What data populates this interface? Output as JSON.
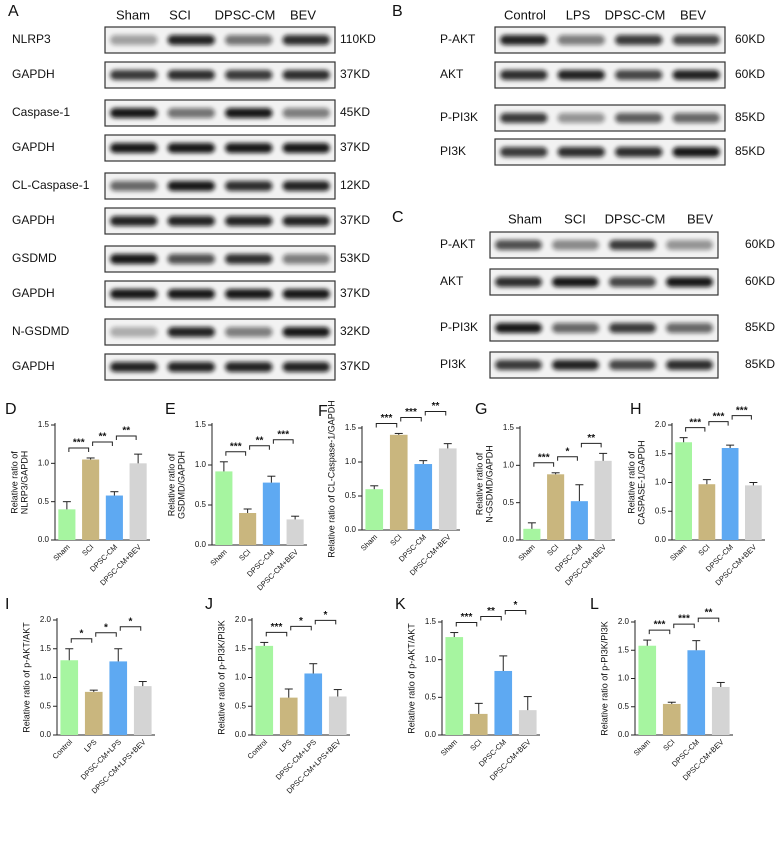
{
  "blots": [
    {
      "label": "A",
      "lanes": [
        "Sham",
        "SCI",
        "DPSC-CM",
        "BEV"
      ],
      "rows": [
        {
          "protein": "NLRP3",
          "size": "110KD"
        },
        {
          "protein": "GAPDH",
          "size": "37KD"
        },
        {
          "protein": "Caspase-1",
          "size": "45KD"
        },
        {
          "protein": "GAPDH",
          "size": "37KD"
        },
        {
          "protein": "CL-Caspase-1",
          "size": "12KD"
        },
        {
          "protein": "GAPDH",
          "size": "37KD"
        },
        {
          "protein": "GSDMD",
          "size": "53KD"
        },
        {
          "protein": "GAPDH",
          "size": "37KD"
        },
        {
          "protein": "N-GSDMD",
          "size": "32KD"
        },
        {
          "protein": "GAPDH",
          "size": "37KD"
        }
      ]
    },
    {
      "label": "B",
      "lanes": [
        "Control",
        "LPS",
        "DPSC-CM",
        "BEV"
      ],
      "rows": [
        {
          "protein": "P-AKT",
          "size": "60KD"
        },
        {
          "protein": "AKT",
          "size": "60KD"
        },
        {
          "protein": "P-PI3K",
          "size": "85KD"
        },
        {
          "protein": "PI3K",
          "size": "85KD"
        }
      ]
    },
    {
      "label": "C",
      "lanes": [
        "Sham",
        "SCI",
        "DPSC-CM",
        "BEV"
      ],
      "rows": [
        {
          "protein": "P-AKT",
          "size": "60KD"
        },
        {
          "protein": "AKT",
          "size": "60KD"
        },
        {
          "protein": "P-PI3K",
          "size": "85KD"
        },
        {
          "protein": "PI3K",
          "size": "85KD"
        }
      ]
    }
  ],
  "chart_data": [
    {
      "type": "bar",
      "label": "D",
      "ylabel": [
        "Relative ratio of",
        "NLRP3/GAPDH"
      ],
      "categories": [
        "Sham",
        "SCI",
        "DPSC-CM",
        "DPSC-CM+BEV"
      ],
      "values": [
        0.4,
        1.05,
        0.58,
        1.0
      ],
      "errors": [
        0.1,
        0.02,
        0.05,
        0.12
      ],
      "colors": [
        "#a6f5a0",
        "#c9b67e",
        "#5ea9f2",
        "#d4d4d4"
      ],
      "ylim": [
        0,
        1.5
      ],
      "yticks": [
        {
          "value": 0,
          "label": "0.0"
        },
        0.5,
        {
          "value": 1,
          "label": "1.0"
        },
        1.5
      ],
      "annotations": [
        {
          "from": 0,
          "to": 1,
          "label": "***"
        },
        {
          "from": 1,
          "to": 2,
          "label": "**"
        },
        {
          "from": 2,
          "to": 3,
          "label": "**"
        }
      ]
    },
    {
      "type": "bar",
      "label": "E",
      "ylabel": [
        "Relative ratio of",
        "GSDMD/GAPDH"
      ],
      "categories": [
        "Sham",
        "SCI",
        "DPSC-CM",
        "DPSC-CM+BEV"
      ],
      "values": [
        0.92,
        0.4,
        0.78,
        0.32
      ],
      "errors": [
        0.12,
        0.05,
        0.08,
        0.04
      ],
      "colors": [
        "#a6f5a0",
        "#c9b67e",
        "#5ea9f2",
        "#d4d4d4"
      ],
      "ylim": [
        0,
        1.5
      ],
      "yticks": [
        {
          "value": 0,
          "label": "0.0"
        },
        0.5,
        {
          "value": 1,
          "label": "1.0"
        },
        1.5
      ],
      "annotations": [
        {
          "from": 0,
          "to": 1,
          "label": "***"
        },
        {
          "from": 1,
          "to": 2,
          "label": "**"
        },
        {
          "from": 2,
          "to": 3,
          "label": "***"
        }
      ]
    },
    {
      "type": "bar",
      "label": "F",
      "ylabel": [
        "Relative ratio of CL-Caspase-1/GAPDH"
      ],
      "categories": [
        "Sham",
        "SCI",
        "DPSC-CM",
        "DPSC-CM+BEV"
      ],
      "values": [
        0.6,
        1.4,
        0.97,
        1.2
      ],
      "errors": [
        0.05,
        0.02,
        0.05,
        0.07
      ],
      "colors": [
        "#a6f5a0",
        "#c9b67e",
        "#5ea9f2",
        "#d4d4d4"
      ],
      "ylim": [
        0,
        1.5
      ],
      "yticks": [
        {
          "value": 0,
          "label": "0.0"
        },
        0.5,
        {
          "value": 1,
          "label": "1.0"
        },
        1.5
      ],
      "annotations": [
        {
          "from": 0,
          "to": 1,
          "label": "***"
        },
        {
          "from": 1,
          "to": 2,
          "label": "***"
        },
        {
          "from": 2,
          "to": 3,
          "label": "**"
        }
      ]
    },
    {
      "type": "bar",
      "label": "G",
      "ylabel": [
        "Relative ratio of",
        "N-GSDMD/GAPDH"
      ],
      "categories": [
        "Sham",
        "SCI",
        "DPSC-CM",
        "DPSC-CM+BEV"
      ],
      "values": [
        0.15,
        0.88,
        0.52,
        1.06
      ],
      "errors": [
        0.08,
        0.02,
        0.22,
        0.1
      ],
      "colors": [
        "#a6f5a0",
        "#c9b67e",
        "#5ea9f2",
        "#d4d4d4"
      ],
      "ylim": [
        0,
        1.5
      ],
      "yticks": [
        {
          "value": 0,
          "label": "0.0"
        },
        0.5,
        {
          "value": 1,
          "label": "1.0"
        },
        1.5
      ],
      "annotations": [
        {
          "from": 0,
          "to": 1,
          "label": "***"
        },
        {
          "from": 1,
          "to": 2,
          "label": "*"
        },
        {
          "from": 2,
          "to": 3,
          "label": "**"
        }
      ]
    },
    {
      "type": "bar",
      "label": "H",
      "ylabel": [
        "Relative ratio of",
        "CASPASE-1/GAPDH"
      ],
      "categories": [
        "Sham",
        "SCI",
        "DPSC-CM",
        "DPSC-CM+BEV"
      ],
      "values": [
        1.7,
        0.97,
        1.6,
        0.95
      ],
      "errors": [
        0.08,
        0.08,
        0.05,
        0.05
      ],
      "colors": [
        "#a6f5a0",
        "#c9b67e",
        "#5ea9f2",
        "#d4d4d4"
      ],
      "ylim": [
        0,
        2
      ],
      "yticks": [
        {
          "value": 0,
          "label": "0.0"
        },
        0.5,
        {
          "value": 1,
          "label": "1.0"
        },
        1.5,
        {
          "value": 2,
          "label": "2.0"
        }
      ],
      "annotations": [
        {
          "from": 0,
          "to": 1,
          "label": "***"
        },
        {
          "from": 1,
          "to": 2,
          "label": "***"
        },
        {
          "from": 2,
          "to": 3,
          "label": "***"
        }
      ]
    },
    {
      "type": "bar",
      "label": "I",
      "ylabel": [
        "Relative ratio of p-AKT/AKT"
      ],
      "categories": [
        "Control",
        "LPS",
        "DPSC-CM+LPS",
        "DPSC-CM+LPS+BEV"
      ],
      "values": [
        1.3,
        0.75,
        1.28,
        0.85
      ],
      "errors": [
        0.2,
        0.03,
        0.22,
        0.08
      ],
      "colors": [
        "#a6f5a0",
        "#c9b67e",
        "#5ea9f2",
        "#d4d4d4"
      ],
      "ylim": [
        0,
        2
      ],
      "yticks": [
        {
          "value": 0,
          "label": "0.0"
        },
        0.5,
        {
          "value": 1,
          "label": "1.0"
        },
        1.5,
        {
          "value": 2,
          "label": "2.0"
        }
      ],
      "annotations": [
        {
          "from": 0,
          "to": 1,
          "label": "*"
        },
        {
          "from": 1,
          "to": 2,
          "label": "*"
        },
        {
          "from": 2,
          "to": 3,
          "label": "*"
        }
      ]
    },
    {
      "type": "bar",
      "label": "J",
      "ylabel": [
        "Relative ratio of p-PI3K/PI3K"
      ],
      "categories": [
        "Control",
        "LPS",
        "DPSC-CM+LPS",
        "DPSC-CM+LPS+BEV"
      ],
      "values": [
        1.55,
        0.65,
        1.07,
        0.67
      ],
      "errors": [
        0.06,
        0.15,
        0.17,
        0.12
      ],
      "colors": [
        "#a6f5a0",
        "#c9b67e",
        "#5ea9f2",
        "#d4d4d4"
      ],
      "ylim": [
        0,
        2
      ],
      "yticks": [
        {
          "value": 0,
          "label": "0.0"
        },
        0.5,
        {
          "value": 1,
          "label": "1.0"
        },
        1.5,
        {
          "value": 2,
          "label": "2.0"
        }
      ],
      "annotations": [
        {
          "from": 0,
          "to": 1,
          "label": "***"
        },
        {
          "from": 1,
          "to": 2,
          "label": "*"
        },
        {
          "from": 2,
          "to": 3,
          "label": "*"
        }
      ]
    },
    {
      "type": "bar",
      "label": "K",
      "ylabel": [
        "Relative ratio of p-AKT/AKT"
      ],
      "categories": [
        "Sham",
        "SCI",
        "DPSC-CM",
        "DPSC-CM+BEV"
      ],
      "values": [
        1.3,
        0.28,
        0.85,
        0.33
      ],
      "errors": [
        0.06,
        0.14,
        0.2,
        0.18
      ],
      "colors": [
        "#a6f5a0",
        "#c9b67e",
        "#5ea9f2",
        "#d4d4d4"
      ],
      "ylim": [
        0,
        1.5
      ],
      "yticks": [
        {
          "value": 0,
          "label": "0.0"
        },
        0.5,
        {
          "value": 1,
          "label": "1.0"
        },
        1.5
      ],
      "annotations": [
        {
          "from": 0,
          "to": 1,
          "label": "***"
        },
        {
          "from": 1,
          "to": 2,
          "label": "**"
        },
        {
          "from": 2,
          "to": 3,
          "label": "*"
        }
      ]
    },
    {
      "type": "bar",
      "label": "L",
      "ylabel": [
        "Relative ratio of p-PI3K/PI3K"
      ],
      "categories": [
        "Sham",
        "SCI",
        "DPSC-CM",
        "DPSC-CM+BEV"
      ],
      "values": [
        1.58,
        0.55,
        1.5,
        0.85
      ],
      "errors": [
        0.1,
        0.03,
        0.17,
        0.08
      ],
      "colors": [
        "#a6f5a0",
        "#c9b67e",
        "#5ea9f2",
        "#d4d4d4"
      ],
      "ylim": [
        0,
        2
      ],
      "yticks": [
        {
          "value": 0,
          "label": "0.0"
        },
        0.5,
        {
          "value": 1,
          "label": "1.0"
        },
        1.5,
        {
          "value": 2,
          "label": "2.0"
        }
      ],
      "annotations": [
        {
          "from": 0,
          "to": 1,
          "label": "***"
        },
        {
          "from": 1,
          "to": 2,
          "label": "***"
        },
        {
          "from": 2,
          "to": 3,
          "label": "**"
        }
      ]
    }
  ]
}
